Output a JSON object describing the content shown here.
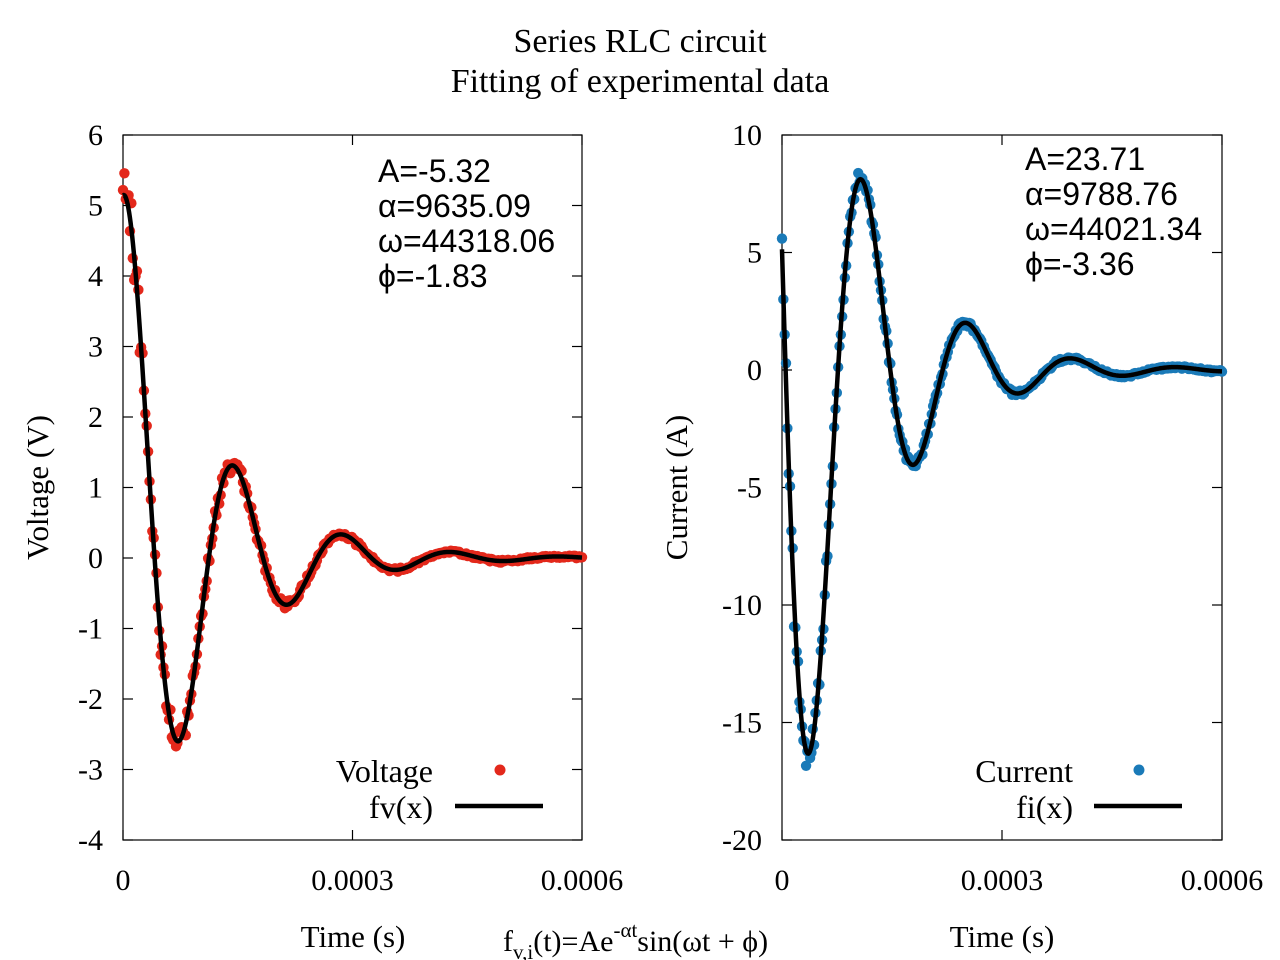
{
  "figure": {
    "title_line1": "Series RLC circuit",
    "title_line2": "Fitting of experimental data",
    "formula": {
      "prefix": "f",
      "subscript": "v,i",
      "main": "(t)=Ae",
      "superscript": "-αt",
      "suffix": "sin(ωt + ϕ)"
    }
  },
  "chart_data": [
    {
      "type": "scatter",
      "xlabel": "Time (s)",
      "ylabel": "Voltage (V)",
      "xlim": [
        0,
        0.0006
      ],
      "ylim": [
        -4,
        6
      ],
      "xticks": [
        0,
        0.0003,
        0.0006
      ],
      "xtick_labels": [
        "0",
        "0.0003",
        "0.0006"
      ],
      "yticks": [
        6,
        5,
        4,
        3,
        2,
        1,
        0,
        -1,
        -2,
        -3,
        -4
      ],
      "ytick_labels": [
        "6",
        "5",
        "4",
        "3",
        "2",
        "1",
        "0",
        "-1",
        "-2",
        "-3",
        "-4"
      ],
      "grid": false,
      "legend_position": "bottom-right",
      "params": [
        "A=-5.32",
        "α=9635.09",
        "ω=44318.06",
        "ϕ=-1.83"
      ],
      "fit": {
        "A": -5.32,
        "alpha": 9635.09,
        "omega": 44318.06,
        "phi": -1.83
      },
      "series": [
        {
          "name": "Voltage",
          "kind": "points",
          "color": "#e3281b"
        },
        {
          "name": "fv(x)",
          "kind": "line",
          "color": "#000000"
        }
      ]
    },
    {
      "type": "scatter",
      "xlabel": "Time (s)",
      "ylabel": "Current (A)",
      "xlim": [
        0,
        0.0006
      ],
      "ylim": [
        -20,
        10
      ],
      "xticks": [
        0,
        0.0003,
        0.0006
      ],
      "xtick_labels": [
        "0",
        "0.0003",
        "0.0006"
      ],
      "yticks": [
        10,
        5,
        0,
        -5,
        -10,
        -15,
        -20
      ],
      "ytick_labels": [
        "10",
        "5",
        "0",
        "-5",
        "-10",
        "-15",
        "-20"
      ],
      "grid": false,
      "legend_position": "bottom-right",
      "params": [
        "A=23.71",
        "α=9788.76",
        "ω=44021.34",
        "ϕ=-3.36"
      ],
      "fit": {
        "A": 23.71,
        "alpha": 9788.76,
        "omega": 44021.34,
        "phi": -3.36
      },
      "series": [
        {
          "name": "Current",
          "kind": "points",
          "color": "#1a7ab8"
        },
        {
          "name": "fi(x)",
          "kind": "line",
          "color": "#000000"
        }
      ]
    }
  ]
}
